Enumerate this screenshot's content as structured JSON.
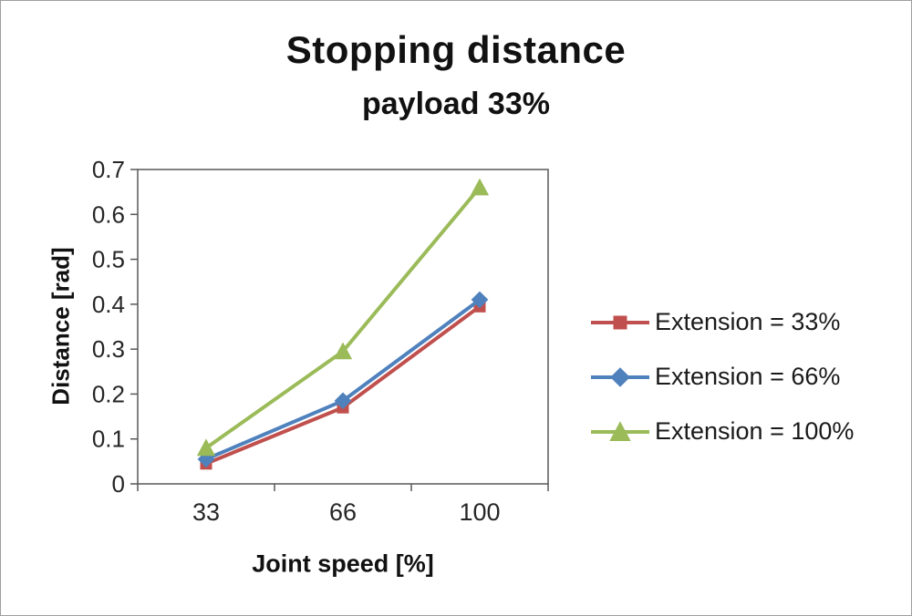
{
  "chart_data": {
    "type": "line",
    "title": "Stopping distance",
    "subtitle": "payload 33%",
    "xlabel": "Joint speed [%]",
    "ylabel": "Distance [rad]",
    "categories": [
      "33",
      "66",
      "100"
    ],
    "series": [
      {
        "name": "Extension = 33%",
        "values": [
          0.045,
          0.17,
          0.395
        ],
        "color": "#C0504D",
        "marker": "square"
      },
      {
        "name": "Extension = 66%",
        "values": [
          0.055,
          0.185,
          0.41
        ],
        "color": "#4F81BD",
        "marker": "diamond"
      },
      {
        "name": "Extension = 100%",
        "values": [
          0.08,
          0.295,
          0.66
        ],
        "color": "#9BBB59",
        "marker": "triangle"
      }
    ],
    "ylim": [
      0,
      0.7
    ],
    "ytick_step": 0.1,
    "grid": false,
    "legend_position": "right",
    "axis_color": "#595959"
  }
}
